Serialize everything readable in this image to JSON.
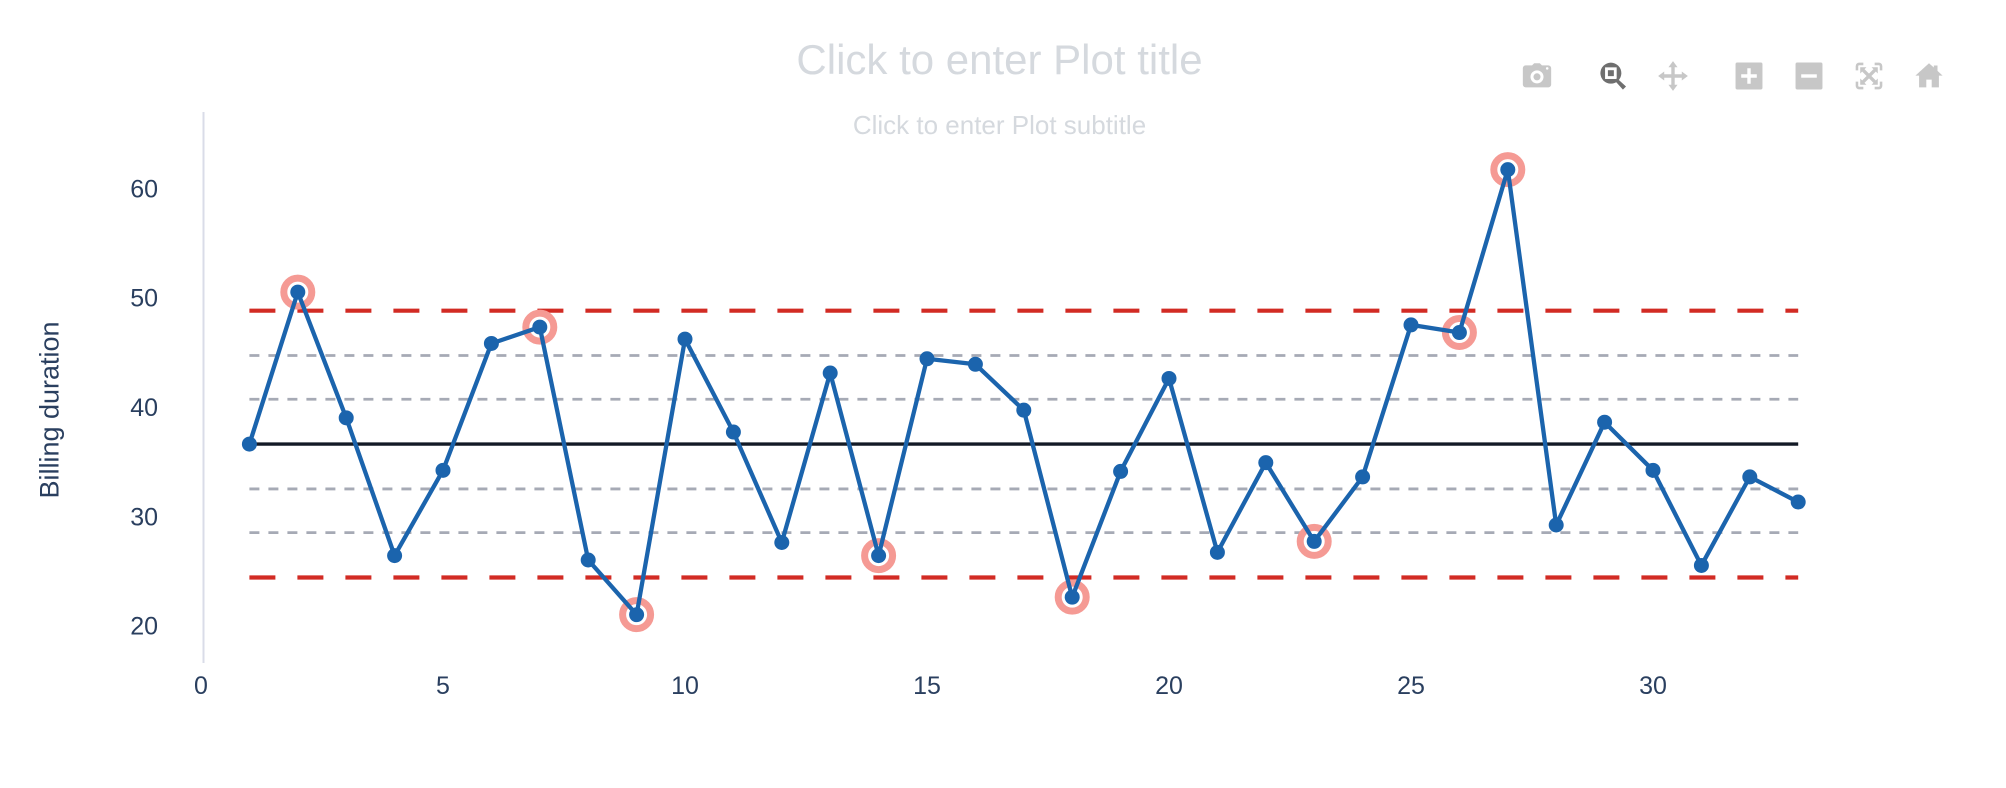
{
  "plot": {
    "title_placeholder": "Click to enter Plot title",
    "subtitle_placeholder": "Click to enter Plot subtitle"
  },
  "toolbar": {
    "buttons": [
      {
        "icon": "camera",
        "active": false
      },
      {
        "icon": "zoom",
        "active": true
      },
      {
        "icon": "pan",
        "active": false
      },
      {
        "icon": "zoom-in",
        "active": false
      },
      {
        "icon": "zoom-out",
        "active": false
      },
      {
        "icon": "autoscale",
        "active": false
      },
      {
        "icon": "reset-home",
        "active": false
      }
    ]
  },
  "chart_data": {
    "type": "line",
    "subtype": "control-chart",
    "title": "Click to enter Plot title",
    "subtitle": "Click to enter Plot subtitle",
    "xlabel": "",
    "ylabel": "Billing duration",
    "x": [
      1,
      2,
      3,
      4,
      5,
      6,
      7,
      8,
      9,
      10,
      11,
      12,
      13,
      14,
      15,
      16,
      17,
      18,
      19,
      20,
      21,
      22,
      23,
      24,
      25,
      26,
      27,
      28,
      29,
      30,
      31,
      32,
      33
    ],
    "series": [
      {
        "name": "Billing duration",
        "values": [
          36.7,
          50.6,
          39.1,
          26.5,
          34.3,
          45.9,
          47.4,
          26.1,
          21.1,
          46.3,
          37.8,
          27.7,
          43.2,
          26.5,
          44.5,
          44.0,
          39.8,
          22.7,
          34.2,
          42.7,
          26.8,
          35.0,
          27.8,
          33.7,
          47.6,
          46.9,
          61.8,
          29.3,
          38.7,
          34.3,
          25.6,
          33.7,
          31.4
        ]
      }
    ],
    "violations_x": [
      2,
      7,
      9,
      14,
      18,
      23,
      26,
      27
    ],
    "center_line": 36.7,
    "control_limits": {
      "ucl": 48.9,
      "lcl": 24.5
    },
    "sigma_zones": [
      44.8,
      40.8,
      32.6,
      28.6
    ],
    "x_ticks": [
      0,
      5,
      10,
      15,
      20,
      25,
      30
    ],
    "y_ticks": [
      20,
      30,
      40,
      50,
      60
    ],
    "x_range": [
      0,
      33.3
    ],
    "y_range": [
      17.2,
      66.8
    ],
    "grid": "off",
    "legend": "none",
    "colors": {
      "series": "#1b64ad",
      "violation_ring": "#f59a94",
      "control_limit": "#d22b24",
      "sigma_zone": "#a6aab5",
      "center_line": "#131a26",
      "axis_line": "#dadce8",
      "axis_text": "#2a3f5f",
      "placeholder_text": "#d5d9de"
    }
  }
}
